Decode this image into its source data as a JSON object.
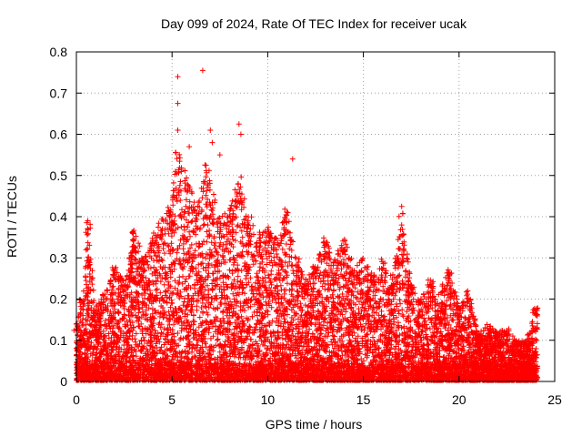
{
  "chart_data": {
    "type": "scatter",
    "title": "Day 099 of 2024, Rate Of TEC Index for receiver ucak",
    "xlabel": "GPS time / hours",
    "ylabel": "ROTI / TECUs",
    "xlim": [
      0,
      25
    ],
    "ylim": [
      0,
      0.8
    ],
    "xticks": [
      0,
      5,
      10,
      15,
      20,
      25
    ],
    "xtick_labels": [
      "0",
      "5",
      "10",
      "15",
      "20",
      "25"
    ],
    "yticks": [
      0,
      0.1,
      0.2,
      0.3,
      0.4,
      0.5,
      0.6,
      0.7,
      0.8
    ],
    "ytick_labels": [
      "0",
      "0.1",
      "0.2",
      "0.3",
      "0.4",
      "0.5",
      "0.6",
      "0.7",
      "0.8"
    ],
    "grid": true,
    "marker": "plus",
    "series": [
      {
        "name": "ROTI",
        "color": "#ff0000",
        "points_note": "dense scatter; envelope sampled below",
        "envelope": [
          [
            0.0,
            0.14
          ],
          [
            0.3,
            0.2
          ],
          [
            0.6,
            0.39
          ],
          [
            1.0,
            0.18
          ],
          [
            1.5,
            0.22
          ],
          [
            2.0,
            0.28
          ],
          [
            2.5,
            0.25
          ],
          [
            3.0,
            0.38
          ],
          [
            3.5,
            0.3
          ],
          [
            4.0,
            0.36
          ],
          [
            4.5,
            0.4
          ],
          [
            5.0,
            0.45
          ],
          [
            5.3,
            0.57
          ],
          [
            5.8,
            0.5
          ],
          [
            6.3,
            0.42
          ],
          [
            6.8,
            0.53
          ],
          [
            7.2,
            0.45
          ],
          [
            7.6,
            0.4
          ],
          [
            8.0,
            0.42
          ],
          [
            8.5,
            0.5
          ],
          [
            9.0,
            0.4
          ],
          [
            9.5,
            0.36
          ],
          [
            10.0,
            0.38
          ],
          [
            10.5,
            0.35
          ],
          [
            11.0,
            0.42
          ],
          [
            11.5,
            0.3
          ],
          [
            12.0,
            0.25
          ],
          [
            12.5,
            0.28
          ],
          [
            13.0,
            0.35
          ],
          [
            13.5,
            0.3
          ],
          [
            14.0,
            0.36
          ],
          [
            14.5,
            0.28
          ],
          [
            15.0,
            0.3
          ],
          [
            15.5,
            0.26
          ],
          [
            16.0,
            0.3
          ],
          [
            16.5,
            0.25
          ],
          [
            17.0,
            0.42
          ],
          [
            17.5,
            0.24
          ],
          [
            18.0,
            0.2
          ],
          [
            18.5,
            0.25
          ],
          [
            19.0,
            0.22
          ],
          [
            19.5,
            0.28
          ],
          [
            20.0,
            0.18
          ],
          [
            20.5,
            0.22
          ],
          [
            21.0,
            0.12
          ],
          [
            21.5,
            0.14
          ],
          [
            22.0,
            0.12
          ],
          [
            22.5,
            0.13
          ],
          [
            23.0,
            0.1
          ],
          [
            23.5,
            0.1
          ],
          [
            24.0,
            0.18
          ]
        ],
        "outliers": [
          [
            5.3,
            0.74
          ],
          [
            6.6,
            0.755
          ],
          [
            5.3,
            0.675
          ],
          [
            5.3,
            0.61
          ],
          [
            5.9,
            0.57
          ],
          [
            7.0,
            0.61
          ],
          [
            8.5,
            0.625
          ],
          [
            8.6,
            0.6
          ],
          [
            7.1,
            0.58
          ],
          [
            7.5,
            0.55
          ],
          [
            11.3,
            0.54
          ],
          [
            0.6,
            0.39
          ],
          [
            17.0,
            0.425
          ],
          [
            17.0,
            0.38
          ]
        ]
      }
    ]
  }
}
